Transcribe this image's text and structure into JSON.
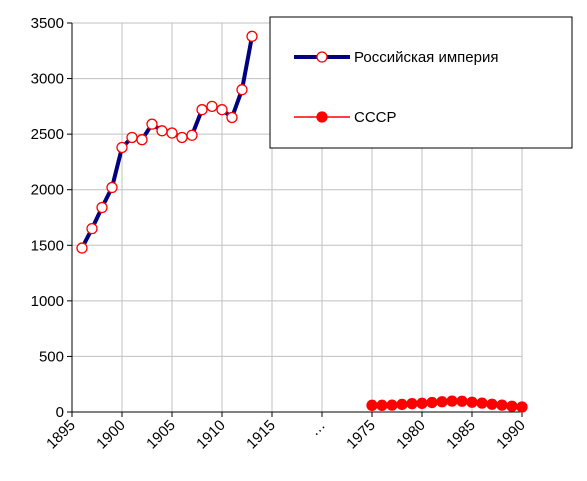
{
  "chart_data": {
    "type": "line",
    "categories": [
      "1895",
      null,
      null,
      null,
      null,
      "1900",
      null,
      null,
      null,
      null,
      "1905",
      null,
      null,
      null,
      null,
      "1910",
      null,
      null,
      null,
      null,
      "1915",
      null,
      null,
      null,
      null,
      "…",
      null,
      null,
      null,
      null,
      "1975",
      null,
      null,
      null,
      null,
      "1980",
      null,
      null,
      null,
      null,
      "1985",
      null,
      null,
      null,
      null,
      "1990"
    ],
    "series": [
      {
        "name": "Российская империя",
        "color": "#000080",
        "marker_color": "#ff0000",
        "values": [
          null,
          1475,
          1650,
          1840,
          2020,
          2380,
          2470,
          2450,
          2590,
          2530,
          2510,
          2470,
          2490,
          2720,
          2750,
          2720,
          2650,
          2900,
          3380,
          null,
          null,
          null,
          null,
          null,
          null,
          null,
          null,
          null,
          null,
          null,
          null,
          null,
          null,
          null,
          null,
          null,
          null,
          null,
          null,
          null,
          null,
          null,
          null,
          null,
          null,
          null
        ]
      },
      {
        "name": "СССР",
        "color": "#ff0000",
        "marker_color": "#ff0000",
        "values": [
          null,
          null,
          null,
          null,
          null,
          null,
          null,
          null,
          null,
          null,
          null,
          null,
          null,
          null,
          null,
          null,
          null,
          null,
          null,
          null,
          null,
          null,
          null,
          null,
          null,
          null,
          null,
          null,
          null,
          null,
          60,
          60,
          62,
          68,
          75,
          78,
          85,
          92,
          98,
          97,
          88,
          80,
          70,
          62,
          52,
          45
        ]
      }
    ],
    "ylim": [
      0,
      3500
    ],
    "yticks": [
      0,
      500,
      1000,
      1500,
      2000,
      2500,
      3000,
      3500
    ],
    "grid": true,
    "legend": "upper right"
  }
}
